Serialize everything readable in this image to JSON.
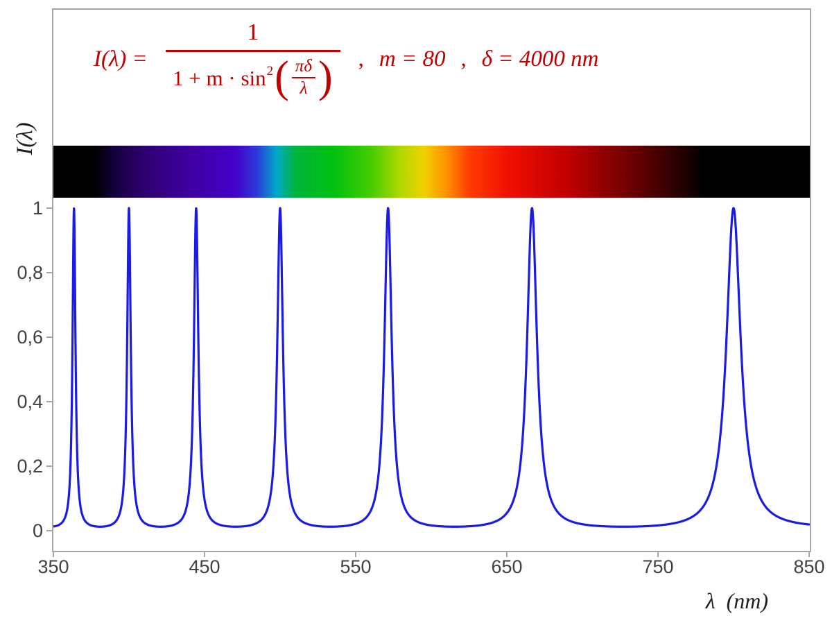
{
  "formula": {
    "color": "#c00000",
    "lhs": "I(λ) = ",
    "frac_numerator": "1",
    "frac_denominator_prefix": "1 + m · sin",
    "sin_exponent": "2",
    "open_paren": "(",
    "inner_frac_numerator": "πδ",
    "inner_frac_denominator": "λ",
    "close_paren": ")",
    "separator_comma": ",",
    "param_m": "m = 80",
    "param_delta": "δ = 4000 nm"
  },
  "chart_data": {
    "type": "line",
    "title": "I(λ) = 1 / (1 + m·sin²(πδ/λ)) ,  m = 80 ,  δ = 4000 nm",
    "xlabel": "λ  (nm)",
    "ylabel": "I(λ)",
    "xlim": [
      350,
      850
    ],
    "ylim": [
      0,
      1
    ],
    "x_ticks": [
      "350",
      "450",
      "550",
      "650",
      "750",
      "850"
    ],
    "y_ticks": [
      "0",
      "0,2",
      "0,4",
      "0,6",
      "0,8",
      "1"
    ],
    "grid": false,
    "legend": false,
    "series": [
      {
        "name": "I(λ)",
        "color": "#1b1be6",
        "formula": "I(λ) = 1 / (1 + m·sin²(π·δ/λ))",
        "parameters": {
          "m": 80,
          "delta_nm": 4000
        },
        "sample_step_nm": 0.1,
        "peak_wavelengths_nm": [
          363.64,
          400,
          444.44,
          500,
          571.43,
          666.67,
          800
        ],
        "peak_value": 1,
        "min_value": 0.0123
      }
    ],
    "spectrum_bar": {
      "range_nm": [
        350,
        850
      ],
      "visible_band_nm": [
        380,
        780
      ],
      "gradient_stops": [
        {
          "pos": 0,
          "color": "#000000"
        },
        {
          "pos": 5.5,
          "color": "#000000"
        },
        {
          "pos": 8,
          "color": "#14003c"
        },
        {
          "pos": 12,
          "color": "#2e0070"
        },
        {
          "pos": 18,
          "color": "#3f00a0"
        },
        {
          "pos": 24,
          "color": "#4400c8"
        },
        {
          "pos": 27,
          "color": "#2b3cd8"
        },
        {
          "pos": 29.5,
          "color": "#00a8c8"
        },
        {
          "pos": 32,
          "color": "#00b43c"
        },
        {
          "pos": 37,
          "color": "#00c010"
        },
        {
          "pos": 42,
          "color": "#46cc00"
        },
        {
          "pos": 46,
          "color": "#b4d800"
        },
        {
          "pos": 49,
          "color": "#f0d000"
        },
        {
          "pos": 52,
          "color": "#ff9000"
        },
        {
          "pos": 55,
          "color": "#ff3c00"
        },
        {
          "pos": 60,
          "color": "#f01000"
        },
        {
          "pos": 68,
          "color": "#c00000"
        },
        {
          "pos": 76,
          "color": "#700000"
        },
        {
          "pos": 82,
          "color": "#300000"
        },
        {
          "pos": 86,
          "color": "#000000"
        },
        {
          "pos": 100,
          "color": "#000000"
        }
      ]
    },
    "style": {
      "plot_border_color": "#a6a6a6",
      "tick_text_color": "#404040",
      "axis_title_color": "#1f1f1f",
      "background": "#ffffff"
    }
  }
}
